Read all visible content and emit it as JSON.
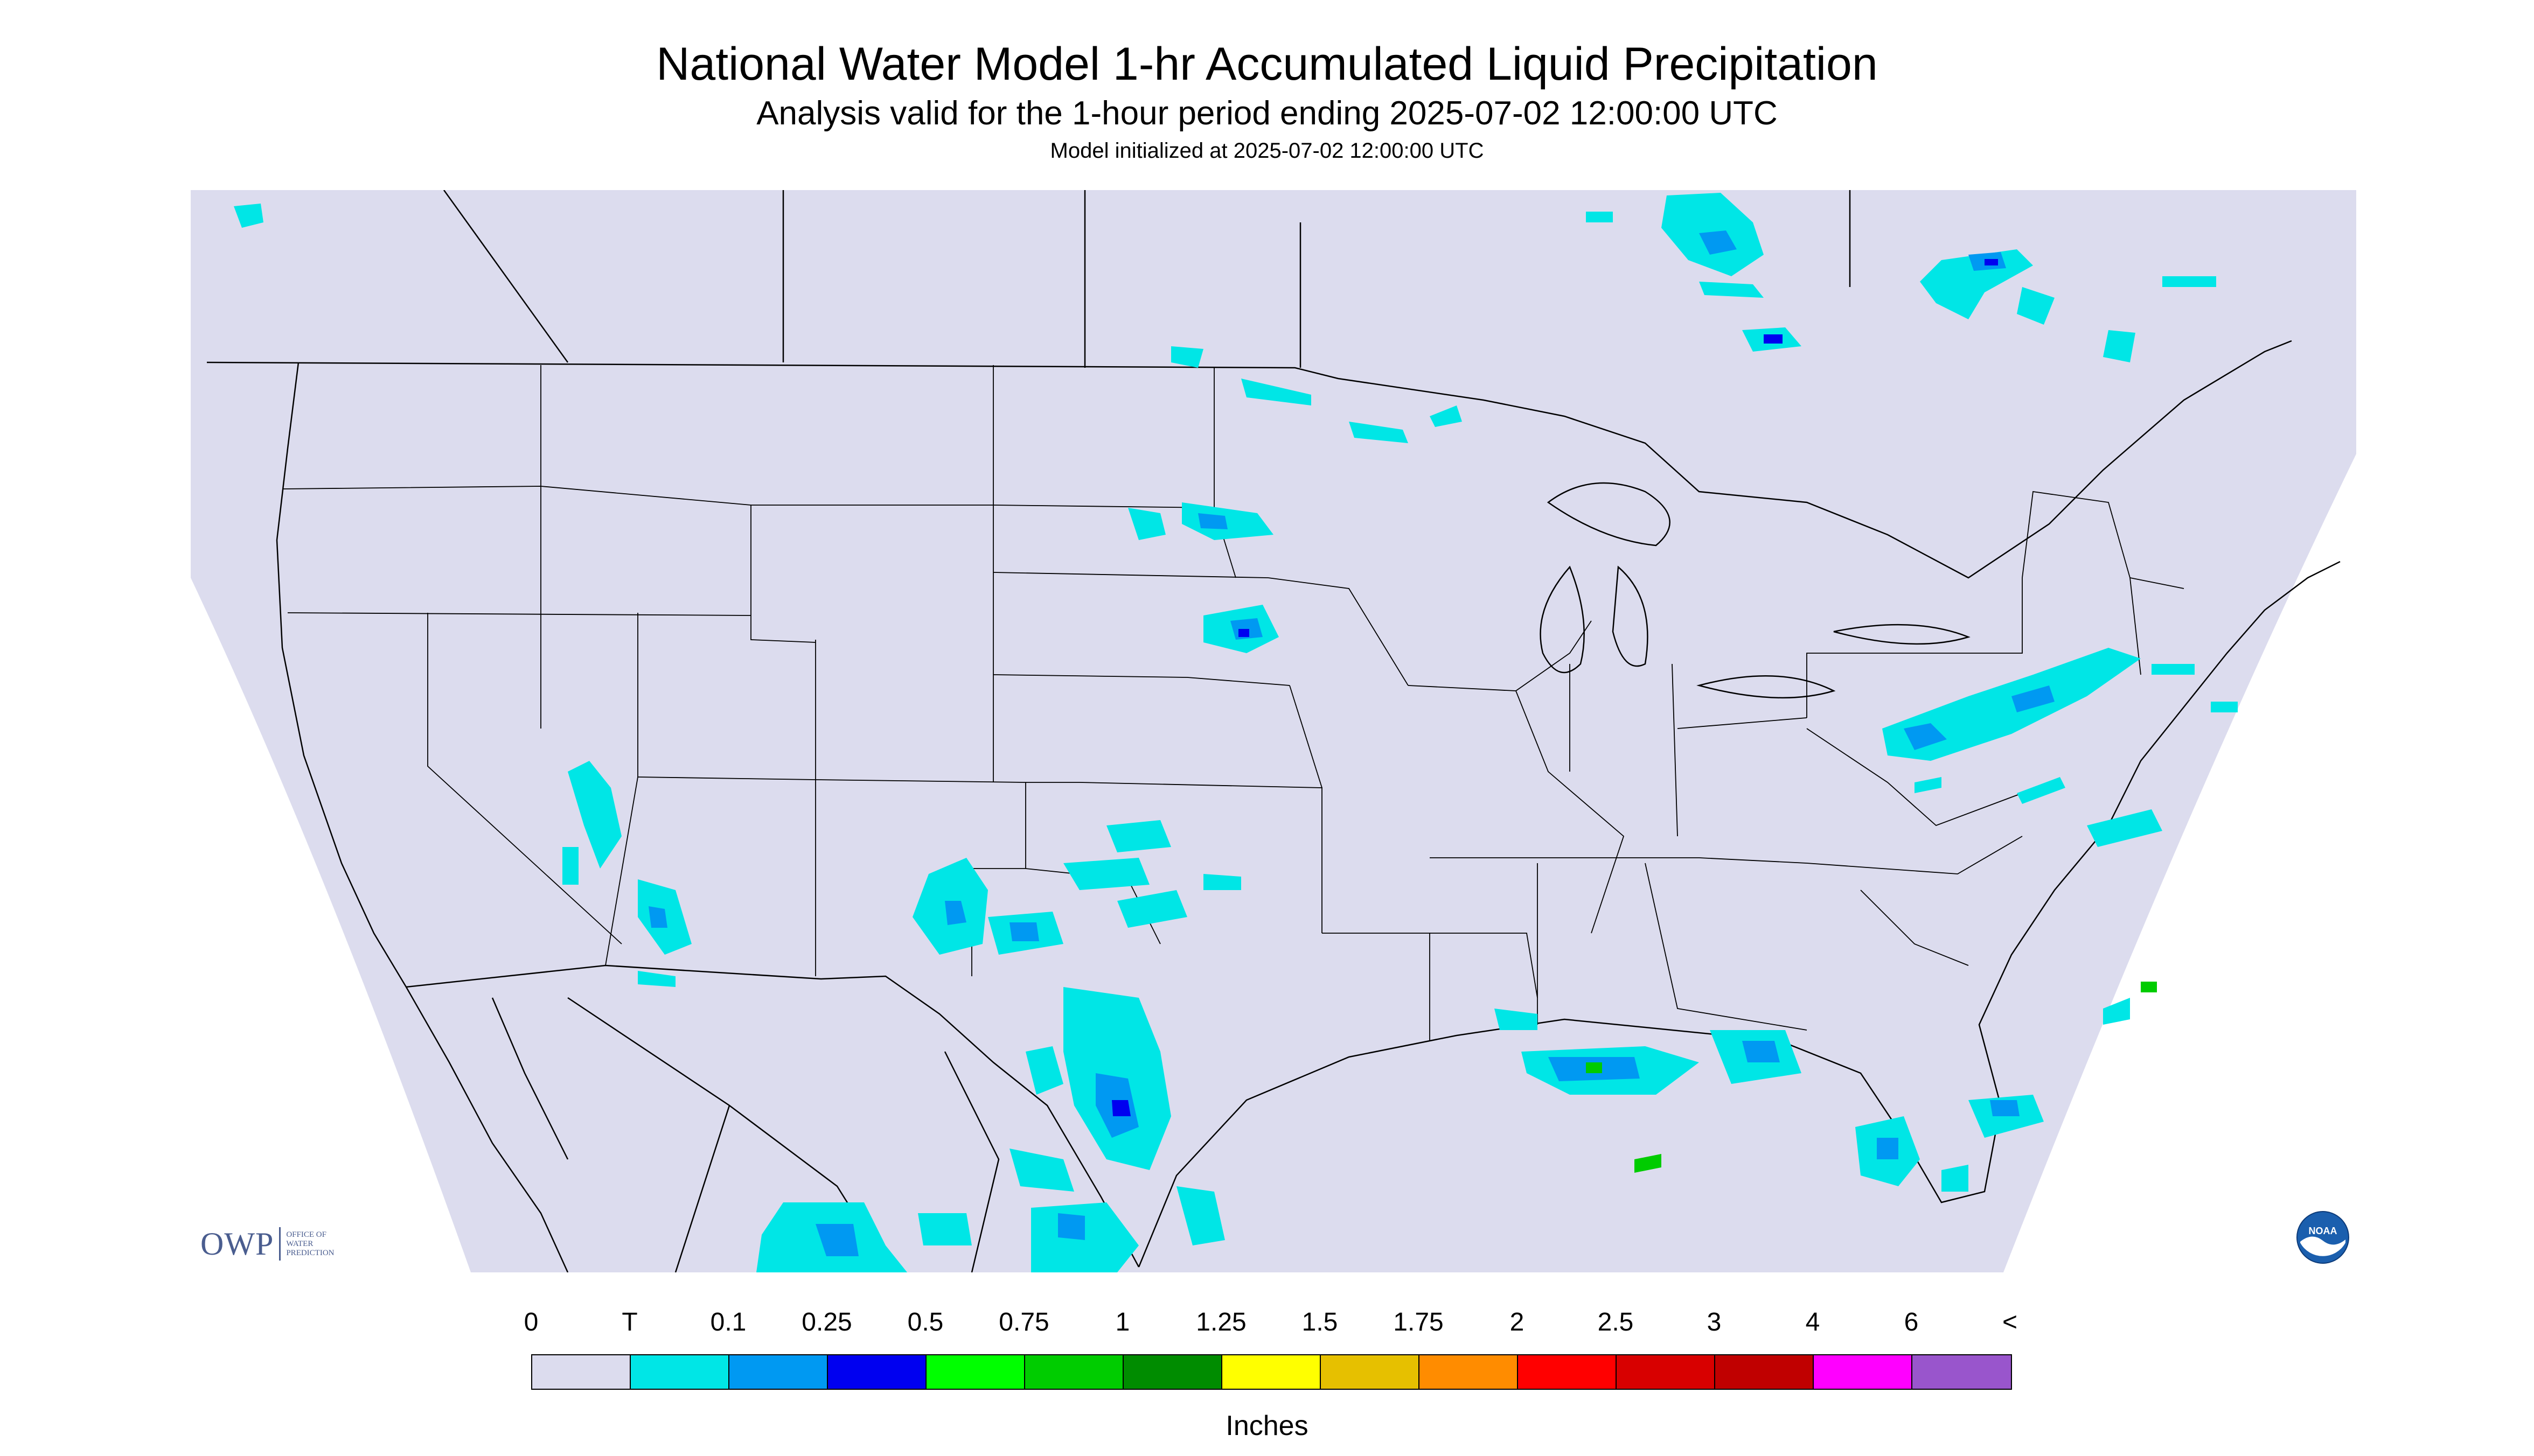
{
  "header": {
    "title": "National Water Model 1-hr Accumulated Liquid Precipitation",
    "subtitle": "Analysis valid for the 1-hour period ending 2025-07-02 12:00:00 UTC",
    "init": "Model initialized at 2025-07-02 12:00:00 UTC"
  },
  "logos": {
    "owp_mark": "OWP",
    "owp_text": "OFFICE OF\nWATER\nPREDICTION",
    "noaa_text": "NOAA"
  },
  "legend": {
    "labels": [
      "0",
      "T",
      "0.1",
      "0.25",
      "0.5",
      "0.75",
      "1",
      "1.25",
      "1.5",
      "1.75",
      "2",
      "2.5",
      "3",
      "4",
      "6",
      "<"
    ],
    "colors": [
      "#dcdcee",
      "#00e6e6",
      "#0099f2",
      "#0000f0",
      "#00ff00",
      "#00cc00",
      "#008c00",
      "#ffff00",
      "#e6c000",
      "#ff8c00",
      "#ff0000",
      "#d80000",
      "#c00000",
      "#ff00ff",
      "#9955cc"
    ],
    "units": "Inches"
  },
  "map": {
    "background": "#dcdcee",
    "outside_domain": "#ffffff",
    "boundary_color": "#000000",
    "precip_areas": [
      {
        "region": "Minnesota/ND border",
        "category": "T"
      },
      {
        "region": "South Dakota east",
        "category": "0.1"
      },
      {
        "region": "Nebraska/Iowa border",
        "category": "0.25"
      },
      {
        "region": "Nevada/Arizona",
        "category": "0.1"
      },
      {
        "region": "New Mexico / West Texas",
        "category": "0.25"
      },
      {
        "region": "Texas Big Bend / Mexico",
        "category": "0.5"
      },
      {
        "region": "Mid-Atlantic coast",
        "category": "0.5"
      },
      {
        "region": "Gulf Coast (LA/MS/AL)",
        "category": "0.75"
      },
      {
        "region": "South Florida",
        "category": "0.25"
      },
      {
        "region": "Ontario/Quebec",
        "category": "0.25"
      }
    ]
  }
}
